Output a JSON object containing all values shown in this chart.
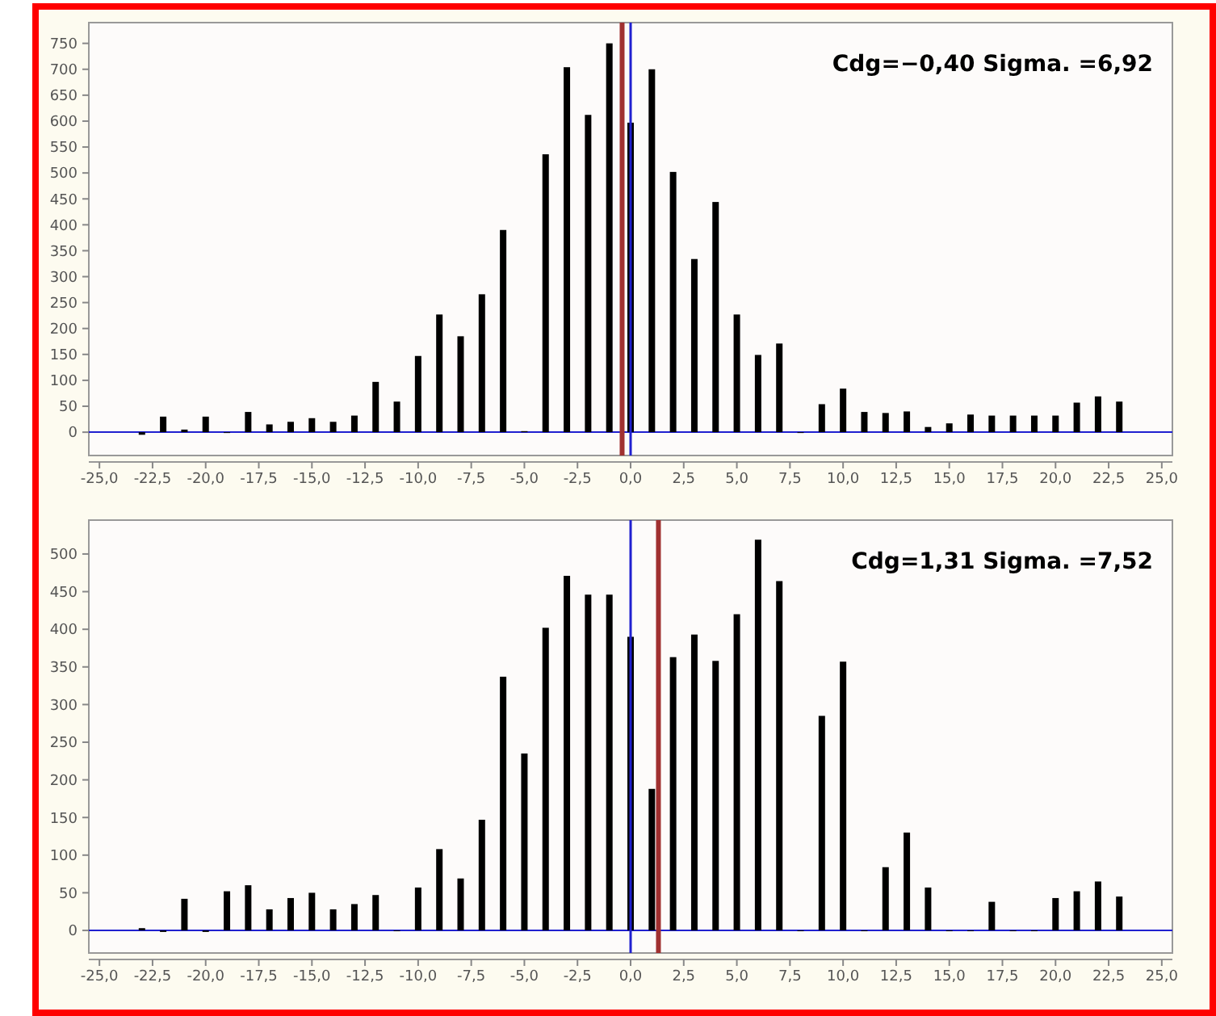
{
  "chart_data": [
    {
      "type": "bar",
      "x": [
        -23,
        -22,
        -21,
        -20,
        -19,
        -18,
        -17,
        -16,
        -15,
        -14,
        -13,
        -12,
        -11,
        -10,
        -9,
        -8,
        -7,
        -6,
        -5,
        -4,
        -3,
        -2,
        -1,
        0,
        1,
        2,
        3,
        4,
        5,
        6,
        7,
        8,
        9,
        10,
        11,
        12,
        13,
        14,
        15,
        16,
        17,
        18,
        19,
        20,
        21,
        22,
        23
      ],
      "values": [
        -5,
        30,
        5,
        30,
        0,
        39,
        15,
        20,
        27,
        20,
        32,
        97,
        59,
        147,
        227,
        185,
        266,
        390,
        2,
        536,
        704,
        612,
        750,
        597,
        700,
        502,
        334,
        444,
        227,
        149,
        171,
        0,
        54,
        84,
        39,
        37,
        40,
        10,
        17,
        34,
        32,
        32,
        32,
        32,
        57,
        69,
        59
      ],
      "color": "#000000",
      "xlim": [
        -25.5,
        25.5
      ],
      "xticks": [
        {
          "value": -25,
          "label": "-25,0"
        },
        {
          "value": -22.5,
          "label": "-22,5"
        },
        {
          "value": -20,
          "label": "-20,0"
        },
        {
          "value": -17.5,
          "label": "-17,5"
        },
        {
          "value": -15,
          "label": "-15,0"
        },
        {
          "value": -12.5,
          "label": "-12,5"
        },
        {
          "value": -10,
          "label": "-10,0"
        },
        {
          "value": -7.5,
          "label": "-7,5"
        },
        {
          "value": -5,
          "label": "-5,0"
        },
        {
          "value": -2.5,
          "label": "-2,5"
        },
        {
          "value": 0,
          "label": "0,0"
        },
        {
          "value": 2.5,
          "label": "2,5"
        },
        {
          "value": 5,
          "label": "5,0"
        },
        {
          "value": 7.5,
          "label": "7,5"
        },
        {
          "value": 10,
          "label": "10,0"
        },
        {
          "value": 12.5,
          "label": "12,5"
        },
        {
          "value": 15,
          "label": "15,0"
        },
        {
          "value": 17.5,
          "label": "17,5"
        },
        {
          "value": 20,
          "label": "20,0"
        },
        {
          "value": 22.5,
          "label": "22,5"
        },
        {
          "value": 25,
          "label": "25,0"
        }
      ],
      "ylim": [
        -45,
        790
      ],
      "yticks": [
        0,
        50,
        100,
        150,
        200,
        250,
        300,
        350,
        400,
        450,
        500,
        550,
        600,
        650,
        700,
        750
      ],
      "ref_lines": [
        {
          "axis": "y",
          "value": 0,
          "color": "#2020d0"
        },
        {
          "axis": "x",
          "value": 0,
          "color": "#2020d0"
        },
        {
          "axis": "x",
          "value": -0.4,
          "color": "#a03030"
        }
      ],
      "annotations": [
        "Cdg=−0,40 Sigma. =6,92"
      ]
    },
    {
      "type": "bar",
      "x": [
        -23,
        -22,
        -21,
        -20,
        -19,
        -18,
        -17,
        -16,
        -15,
        -14,
        -13,
        -12,
        -11,
        -10,
        -9,
        -8,
        -7,
        -6,
        -5,
        -4,
        -3,
        -2,
        -1,
        0,
        1,
        2,
        3,
        4,
        5,
        6,
        7,
        8,
        9,
        10,
        11,
        12,
        13,
        14,
        15,
        16,
        17,
        18,
        19,
        20,
        21,
        22,
        23
      ],
      "values": [
        3,
        -2,
        42,
        -2,
        52,
        60,
        28,
        43,
        50,
        28,
        35,
        47,
        0,
        57,
        108,
        69,
        147,
        337,
        235,
        402,
        471,
        446,
        446,
        390,
        188,
        363,
        393,
        358,
        420,
        519,
        464,
        0,
        285,
        357,
        0,
        84,
        130,
        57,
        0,
        0,
        38,
        0,
        0,
        43,
        52,
        65,
        45
      ],
      "color": "#000000",
      "xlim": [
        -25.5,
        25.5
      ],
      "xticks": [
        {
          "value": -25,
          "label": "-25,0"
        },
        {
          "value": -22.5,
          "label": "-22,5"
        },
        {
          "value": -20,
          "label": "-20,0"
        },
        {
          "value": -17.5,
          "label": "-17,5"
        },
        {
          "value": -15,
          "label": "-15,0"
        },
        {
          "value": -12.5,
          "label": "-12,5"
        },
        {
          "value": -10,
          "label": "-10,0"
        },
        {
          "value": -7.5,
          "label": "-7,5"
        },
        {
          "value": -5,
          "label": "-5,0"
        },
        {
          "value": -2.5,
          "label": "-2,5"
        },
        {
          "value": 0,
          "label": "0,0"
        },
        {
          "value": 2.5,
          "label": "2,5"
        },
        {
          "value": 5,
          "label": "5,0"
        },
        {
          "value": 7.5,
          "label": "7,5"
        },
        {
          "value": 10,
          "label": "10,0"
        },
        {
          "value": 12.5,
          "label": "12,5"
        },
        {
          "value": 15,
          "label": "15,0"
        },
        {
          "value": 17.5,
          "label": "17,5"
        },
        {
          "value": 20,
          "label": "20,0"
        },
        {
          "value": 22.5,
          "label": "22,5"
        },
        {
          "value": 25,
          "label": "25,0"
        }
      ],
      "ylim": [
        -30,
        545
      ],
      "yticks": [
        0,
        50,
        100,
        150,
        200,
        250,
        300,
        350,
        400,
        450,
        500
      ],
      "ref_lines": [
        {
          "axis": "y",
          "value": 0,
          "color": "#2020d0"
        },
        {
          "axis": "x",
          "value": 0,
          "color": "#2020d0"
        },
        {
          "axis": "x",
          "value": 1.31,
          "color": "#a03030"
        }
      ],
      "annotations": [
        "Cdg=1,31 Sigma. =7,52"
      ]
    }
  ]
}
